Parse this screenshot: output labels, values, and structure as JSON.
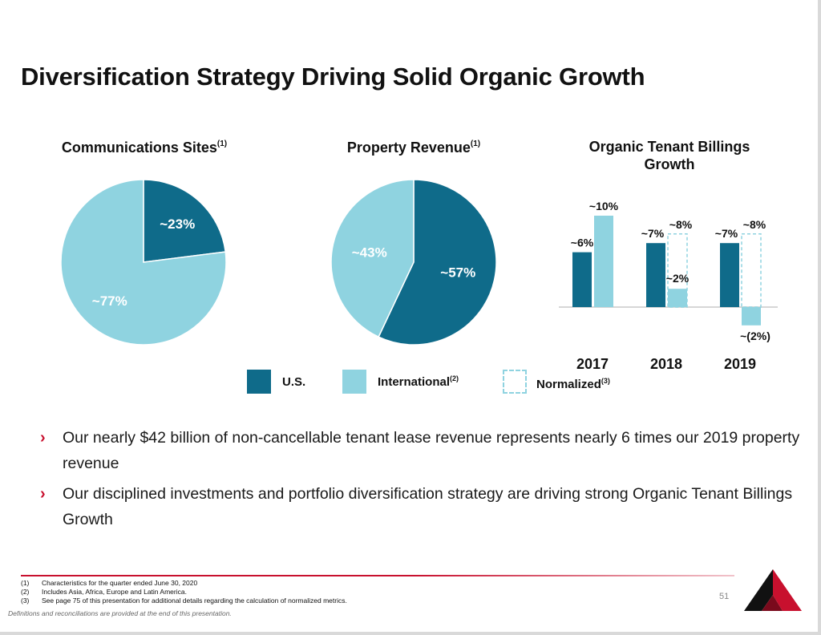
{
  "title": "Diversification Strategy Driving Solid Organic Growth",
  "colors": {
    "us": "#0f6b8a",
    "international": "#8fd3e0",
    "normalized_border": "#8fd3e0",
    "accent": "#c8102e"
  },
  "panels": {
    "sites": {
      "title": "Communications Sites",
      "sup": "(1)"
    },
    "revenue": {
      "title": "Property Revenue",
      "sup": "(1)"
    },
    "billings": {
      "title_line1": "Organic Tenant Billings",
      "title_line2": "Growth"
    }
  },
  "legend": {
    "us": {
      "label": "U.S."
    },
    "international": {
      "label": "International",
      "sup": "(2)"
    },
    "normalized": {
      "label": "Normalized",
      "sup": "(3)"
    }
  },
  "chart_data": [
    {
      "type": "pie",
      "title": "Communications Sites",
      "slices": [
        {
          "name": "U.S.",
          "value": 23,
          "label": "~23%"
        },
        {
          "name": "International",
          "value": 77,
          "label": "~77%"
        }
      ]
    },
    {
      "type": "pie",
      "title": "Property Revenue",
      "slices": [
        {
          "name": "U.S.",
          "value": 57,
          "label": "~57%"
        },
        {
          "name": "International",
          "value": 43,
          "label": "~43%"
        }
      ]
    },
    {
      "type": "bar",
      "title": "Organic Tenant Billings Growth",
      "categories": [
        "2017",
        "2018",
        "2019"
      ],
      "series": [
        {
          "name": "U.S.",
          "values": [
            6,
            7,
            7
          ],
          "labels": [
            "~6%",
            "~7%",
            "~7%"
          ]
        },
        {
          "name": "International",
          "values": [
            10,
            2,
            -2
          ],
          "labels": [
            "~10%",
            "~2%",
            "~(2%)"
          ]
        },
        {
          "name": "Normalized",
          "values": [
            null,
            8,
            8
          ],
          "labels": [
            "",
            "~8%",
            "~8%"
          ]
        }
      ]
    }
  ],
  "bullets": [
    "Our nearly $42 billion of non-cancellable tenant lease revenue represents nearly 6 times our 2019 property revenue",
    "Our disciplined investments and portfolio diversification strategy are driving strong Organic Tenant Billings Growth"
  ],
  "footnotes": [
    {
      "num": "(1)",
      "text": "Characteristics for the quarter ended June 30, 2020"
    },
    {
      "num": "(2)",
      "text": "Includes Asia, Africa, Europe and Latin America."
    },
    {
      "num": "(3)",
      "text": "See page 75 of this presentation for additional details regarding the calculation of normalized metrics."
    }
  ],
  "definitions_note": "Definitions and reconciliations are provided at the end of this presentation.",
  "page_number": "51",
  "bullet_marker": "›",
  "logo_icon": "company-logo-icon"
}
